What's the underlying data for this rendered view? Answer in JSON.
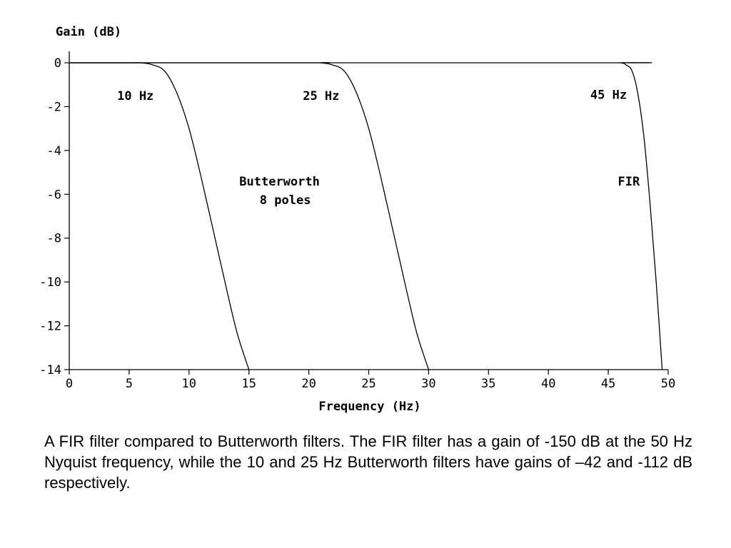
{
  "chart_data": {
    "type": "line",
    "title": "",
    "xlabel": "Frequency (Hz)",
    "ylabel": "Gain (dB)",
    "xlim": [
      0,
      50
    ],
    "ylim": [
      -14,
      0
    ],
    "xticks": [
      0,
      5,
      10,
      15,
      20,
      25,
      30,
      35,
      40,
      45,
      50
    ],
    "yticks": [
      0,
      -2,
      -4,
      -6,
      -8,
      -10,
      -12,
      -14
    ],
    "grid": false,
    "series": [
      {
        "name": "10 Hz",
        "x": [
          0,
          5,
          6,
          7,
          8,
          9,
          10,
          11,
          12,
          13,
          14,
          15
        ],
        "y": [
          0,
          0,
          0,
          -0.1,
          -0.4,
          -1.4,
          -3.0,
          -5.2,
          -7.6,
          -10.0,
          -12.3,
          -14.0
        ]
      },
      {
        "name": "25 Hz",
        "x": [
          0,
          20,
          21,
          22,
          23,
          24,
          25,
          26,
          27,
          28,
          29,
          30
        ],
        "y": [
          0,
          0,
          0,
          -0.1,
          -0.4,
          -1.4,
          -3.0,
          -5.2,
          -7.6,
          -10.0,
          -12.3,
          -14.0
        ]
      },
      {
        "name": "45 Hz",
        "x": [
          0,
          45,
          46,
          46.5,
          47,
          47.5,
          48,
          48.5,
          49,
          49.5
        ],
        "y": [
          0,
          0,
          0,
          -0.1,
          -0.4,
          -1.5,
          -3.5,
          -6.5,
          -10.0,
          -14.0
        ]
      }
    ],
    "annotations": [
      {
        "text": "10 Hz",
        "x": 4,
        "y": -1.7
      },
      {
        "text": "25 Hz",
        "x": 19.5,
        "y": -1.7
      },
      {
        "text": "45 Hz",
        "x": 43.5,
        "y": -1.65
      },
      {
        "text": "Butterworth",
        "x": 14.2,
        "y": -5.6
      },
      {
        "text": "8 poles",
        "x": 15.9,
        "y": -6.45
      },
      {
        "text": "FIR",
        "x": 45.8,
        "y": -5.6
      }
    ]
  },
  "caption": "A FIR filter compared to  Butterworth filters. The FIR filter has a gain of -150 dB at the 50 Hz Nyquist frequency, while the 10 and 25 Hz Butterworth filters have gains of –42 and -112 dB respectively."
}
